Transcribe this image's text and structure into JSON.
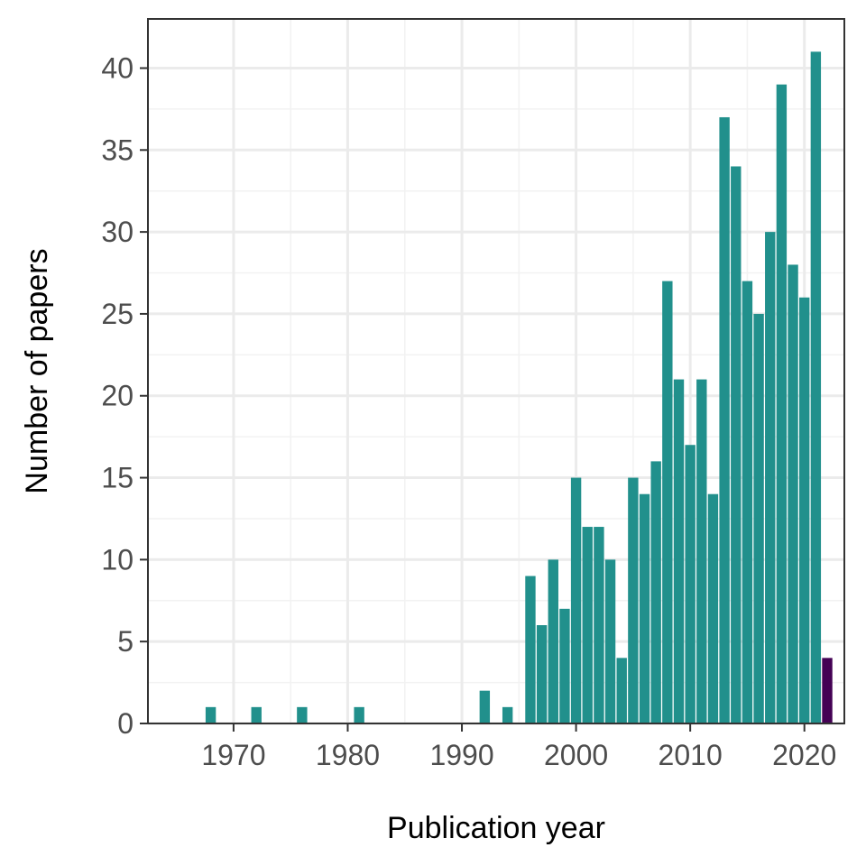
{
  "chart_data": {
    "type": "bar",
    "xlabel": "Publication year",
    "ylabel": "Number of papers",
    "xlim": [
      1962.5,
      2023.5
    ],
    "ylim": [
      0,
      43
    ],
    "x_ticks": [
      1970,
      1980,
      1990,
      2000,
      2010,
      2020
    ],
    "y_ticks": [
      0,
      5,
      10,
      15,
      20,
      25,
      30,
      35,
      40
    ],
    "grid": true,
    "legend": "none",
    "colors": {
      "default": "#21908C",
      "highlight": "#440154"
    },
    "series": [
      {
        "x": [
          1968,
          1972,
          1976,
          1981,
          1992,
          1994,
          1996,
          1997,
          1998,
          1999,
          2000,
          2001,
          2002,
          2003,
          2004,
          2005,
          2006,
          2007,
          2008,
          2009,
          2010,
          2011,
          2012,
          2013,
          2014,
          2015,
          2016,
          2017,
          2018,
          2019,
          2020,
          2021,
          2022
        ],
        "values": [
          1,
          1,
          1,
          1,
          2,
          1,
          9,
          6,
          10,
          7,
          15,
          12,
          12,
          10,
          4,
          15,
          14,
          16,
          27,
          21,
          17,
          21,
          14,
          37,
          34,
          27,
          25,
          30,
          39,
          28,
          26,
          41,
          4
        ],
        "highlight_x": [
          2022
        ]
      }
    ]
  }
}
